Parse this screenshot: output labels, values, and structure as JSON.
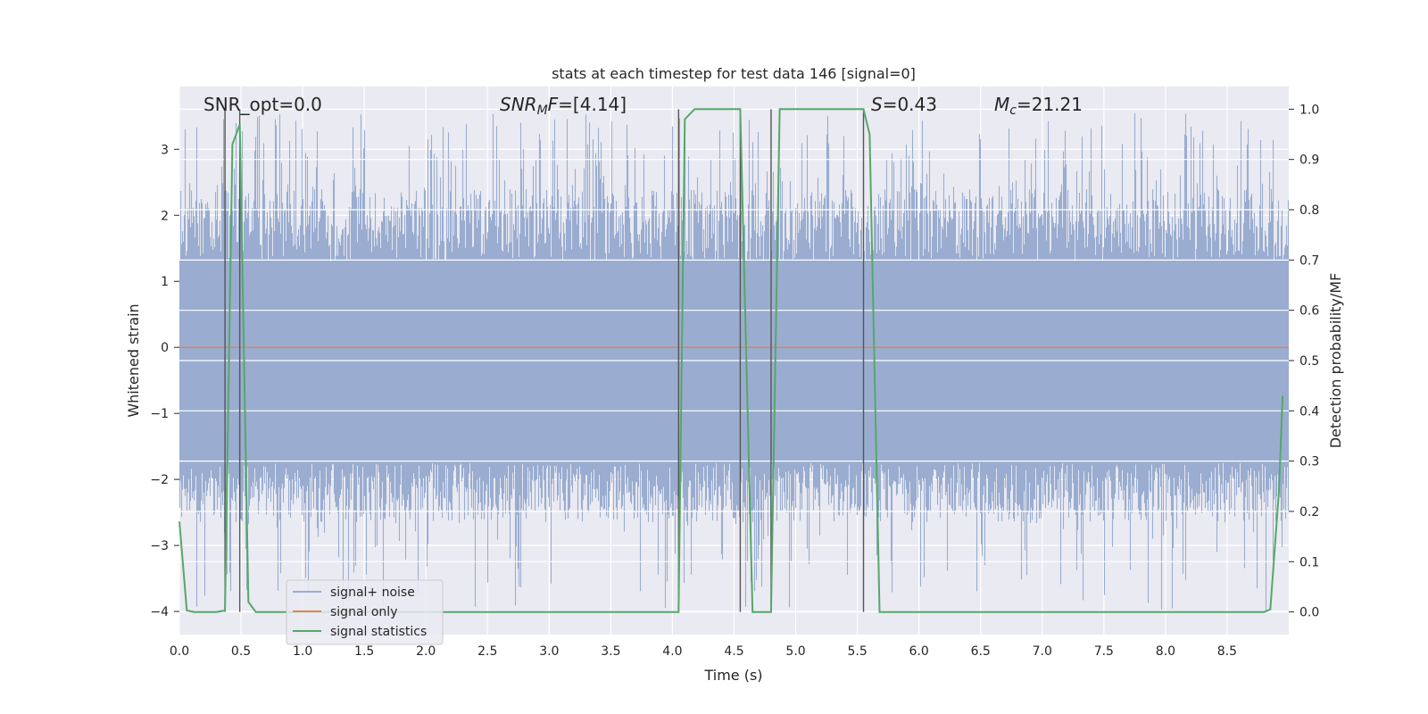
{
  "chart_data": {
    "type": "line",
    "title": "stats at each timestep for test data 146 [signal=0]",
    "xlabel": "Time (s)",
    "ylabel": "Whitened strain",
    "y2label": "Detection probability/MF",
    "xlim": [
      0.0,
      9.0
    ],
    "ylim": [
      -4.35,
      3.95
    ],
    "y2lim": [
      -0.045,
      1.045
    ],
    "xticks": [
      "0.0",
      "0.5",
      "1.0",
      "1.5",
      "2.0",
      "2.5",
      "3.0",
      "3.5",
      "4.0",
      "4.5",
      "5.0",
      "5.5",
      "6.0",
      "6.5",
      "7.0",
      "7.5",
      "8.0",
      "8.5"
    ],
    "yticks": [
      "3",
      "2",
      "1",
      "0",
      "−1",
      "−2",
      "−3",
      "−4"
    ],
    "y2ticks": [
      "1.0",
      "0.9",
      "0.8",
      "0.7",
      "0.6",
      "0.5",
      "0.4",
      "0.3",
      "0.2",
      "0.1",
      "0.0"
    ],
    "grid": true,
    "legend_position": "lower-left",
    "annotations": {
      "snr_opt": "SNR_opt=0.0",
      "snr_mf_sym": "SNR",
      "snr_mf_sub": "M",
      "snr_mf_sym2": "F",
      "snr_mf_val": "=[4.14]",
      "s_sym": "S",
      "s_val": "=0.43",
      "mc_sym": "M",
      "mc_sub": "c",
      "mc_val": "=21.21"
    },
    "series": [
      {
        "name": "signal+ noise",
        "color": "#9aadd0",
        "kind": "noise",
        "envelope": {
          "upper_typical": 1.3,
          "lower_typical": -1.75,
          "upper_peak": 3.55,
          "lower_peak": -4.0
        }
      },
      {
        "name": "signal only",
        "color": "#dd8452",
        "x": [
          0.0,
          9.0
        ],
        "y": [
          0.0,
          0.0
        ]
      },
      {
        "name": "signal statistics",
        "color": "#55a868",
        "axis": "right",
        "x": [
          0.0,
          0.06,
          0.12,
          0.3,
          0.37,
          0.43,
          0.49,
          0.56,
          0.62,
          0.7,
          4.05,
          4.1,
          4.18,
          4.55,
          4.65,
          4.7,
          4.75,
          4.8,
          4.87,
          5.55,
          5.6,
          5.68,
          8.8,
          8.85,
          8.92,
          8.95
        ],
        "y": [
          0.18,
          0.003,
          0.0,
          0.0,
          0.003,
          0.93,
          0.97,
          0.02,
          0.0,
          0.0,
          0.0,
          0.98,
          1.0,
          1.0,
          0.0,
          0.0,
          0.0,
          0.0,
          1.0,
          1.0,
          0.95,
          0.0,
          0.0,
          0.005,
          0.24,
          0.43
        ]
      }
    ],
    "vlines": [
      0.37,
      0.49,
      4.05,
      4.55,
      4.8,
      5.55
    ]
  }
}
